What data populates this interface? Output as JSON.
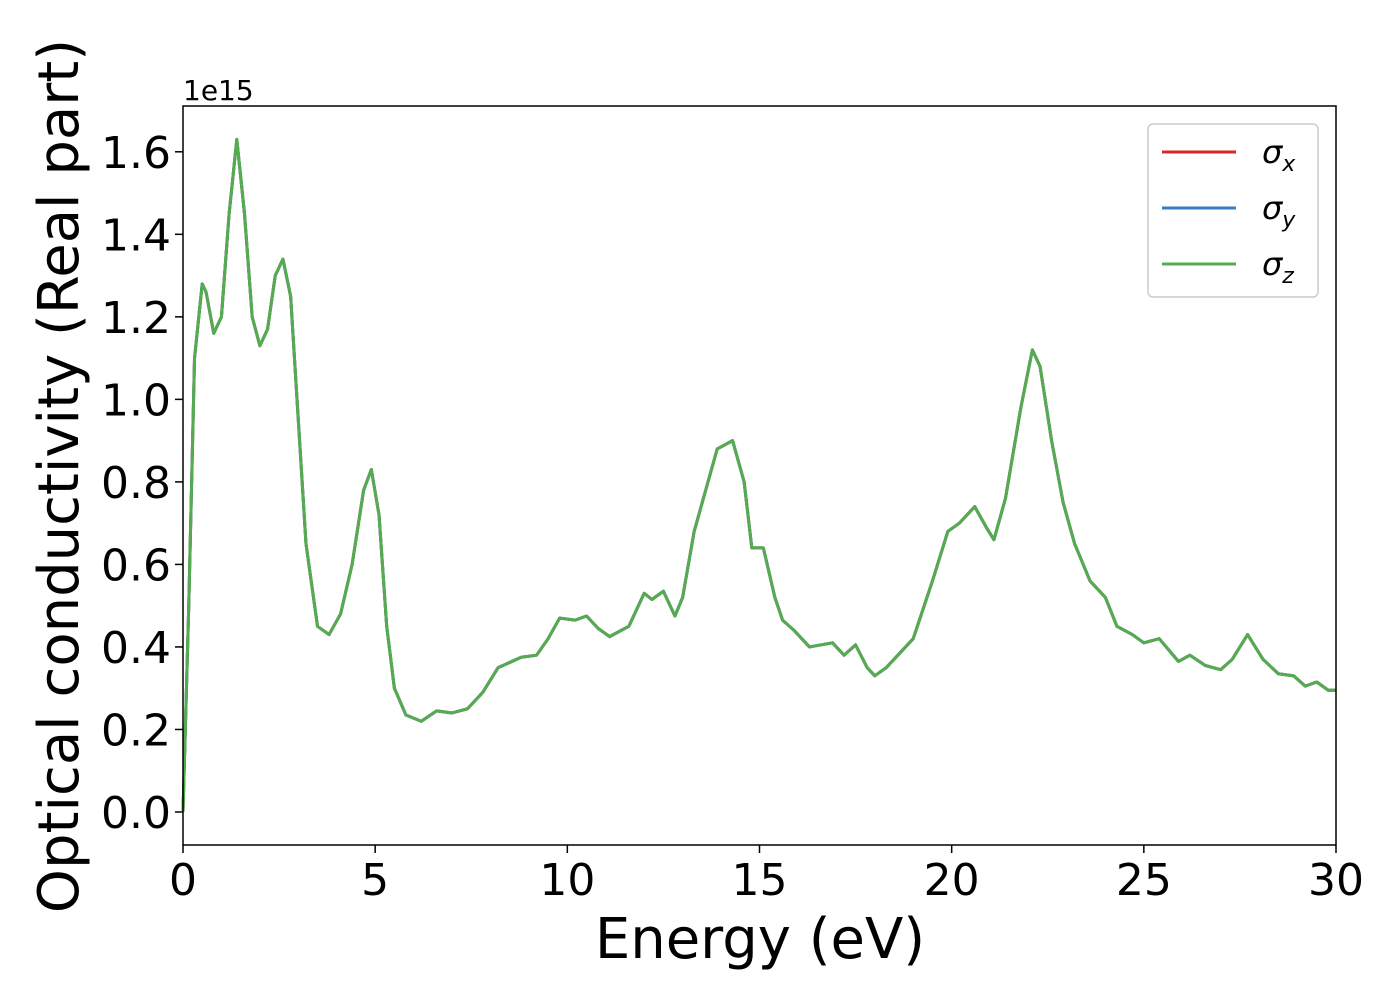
{
  "chart_data": {
    "type": "line",
    "xlabel": "Energy (eV)",
    "ylabel": "Optical conductivity (Real part)",
    "y_offset_label": "1e15",
    "x": [
      0,
      0.15,
      0.3,
      0.5,
      0.6,
      0.8,
      1.0,
      1.2,
      1.4,
      1.6,
      1.8,
      2.0,
      2.2,
      2.4,
      2.6,
      2.8,
      3.0,
      3.2,
      3.5,
      3.8,
      4.1,
      4.4,
      4.7,
      4.9,
      5.1,
      5.3,
      5.5,
      5.8,
      6.2,
      6.6,
      7.0,
      7.4,
      7.8,
      8.2,
      8.8,
      9.2,
      9.5,
      9.8,
      10.2,
      10.5,
      10.8,
      11.1,
      11.6,
      12.0,
      12.2,
      12.5,
      12.8,
      13.0,
      13.3,
      13.6,
      13.9,
      14.3,
      14.6,
      14.8,
      15.1,
      15.4,
      15.6,
      15.9,
      16.3,
      16.9,
      17.2,
      17.5,
      17.8,
      18.0,
      18.3,
      18.6,
      19.0,
      19.5,
      19.9,
      20.2,
      20.6,
      20.9,
      21.1,
      21.4,
      21.8,
      22.1,
      22.3,
      22.6,
      22.9,
      23.2,
      23.6,
      24.0,
      24.3,
      24.7,
      25.0,
      25.4,
      25.9,
      26.2,
      26.6,
      27.0,
      27.3,
      27.7,
      28.1,
      28.5,
      28.9,
      29.2,
      29.5,
      29.8,
      30.0
    ],
    "series": [
      {
        "name": "σx",
        "color": "#d62728",
        "values": [
          0,
          0.5,
          1.1,
          1.28,
          1.26,
          1.16,
          1.2,
          1.45,
          1.63,
          1.45,
          1.2,
          1.13,
          1.17,
          1.3,
          1.34,
          1.25,
          0.95,
          0.65,
          0.45,
          0.43,
          0.48,
          0.6,
          0.78,
          0.83,
          0.72,
          0.45,
          0.3,
          0.235,
          0.22,
          0.245,
          0.24,
          0.25,
          0.29,
          0.35,
          0.375,
          0.38,
          0.42,
          0.47,
          0.465,
          0.475,
          0.445,
          0.425,
          0.45,
          0.53,
          0.515,
          0.535,
          0.475,
          0.52,
          0.68,
          0.78,
          0.88,
          0.9,
          0.8,
          0.64,
          0.64,
          0.52,
          0.465,
          0.44,
          0.4,
          0.41,
          0.38,
          0.405,
          0.35,
          0.33,
          0.35,
          0.38,
          0.42,
          0.56,
          0.68,
          0.7,
          0.74,
          0.69,
          0.66,
          0.76,
          0.98,
          1.12,
          1.08,
          0.9,
          0.75,
          0.65,
          0.56,
          0.52,
          0.45,
          0.43,
          0.41,
          0.42,
          0.365,
          0.38,
          0.355,
          0.345,
          0.37,
          0.43,
          0.37,
          0.335,
          0.33,
          0.305,
          0.315,
          0.295,
          0.295
        ]
      },
      {
        "name": "σy",
        "color": "#3a7dbd",
        "values": [
          0,
          0.5,
          1.1,
          1.28,
          1.26,
          1.16,
          1.2,
          1.45,
          1.63,
          1.45,
          1.2,
          1.13,
          1.17,
          1.3,
          1.34,
          1.25,
          0.95,
          0.65,
          0.45,
          0.43,
          0.48,
          0.6,
          0.78,
          0.83,
          0.72,
          0.45,
          0.3,
          0.235,
          0.22,
          0.245,
          0.24,
          0.25,
          0.29,
          0.35,
          0.375,
          0.38,
          0.42,
          0.47,
          0.465,
          0.475,
          0.445,
          0.425,
          0.45,
          0.53,
          0.515,
          0.535,
          0.475,
          0.52,
          0.68,
          0.78,
          0.88,
          0.9,
          0.8,
          0.64,
          0.64,
          0.52,
          0.465,
          0.44,
          0.4,
          0.41,
          0.38,
          0.405,
          0.35,
          0.33,
          0.35,
          0.38,
          0.42,
          0.56,
          0.68,
          0.7,
          0.74,
          0.69,
          0.66,
          0.76,
          0.98,
          1.12,
          1.08,
          0.9,
          0.75,
          0.65,
          0.56,
          0.52,
          0.45,
          0.43,
          0.41,
          0.42,
          0.365,
          0.38,
          0.355,
          0.345,
          0.37,
          0.43,
          0.37,
          0.335,
          0.33,
          0.305,
          0.315,
          0.295,
          0.295
        ]
      },
      {
        "name": "σz",
        "color": "#55ab50",
        "values": [
          0,
          0.5,
          1.1,
          1.28,
          1.26,
          1.16,
          1.2,
          1.45,
          1.63,
          1.45,
          1.2,
          1.13,
          1.17,
          1.3,
          1.34,
          1.25,
          0.95,
          0.65,
          0.45,
          0.43,
          0.48,
          0.6,
          0.78,
          0.83,
          0.72,
          0.45,
          0.3,
          0.235,
          0.22,
          0.245,
          0.24,
          0.25,
          0.29,
          0.35,
          0.375,
          0.38,
          0.42,
          0.47,
          0.465,
          0.475,
          0.445,
          0.425,
          0.45,
          0.53,
          0.515,
          0.535,
          0.475,
          0.52,
          0.68,
          0.78,
          0.88,
          0.9,
          0.8,
          0.64,
          0.64,
          0.52,
          0.465,
          0.44,
          0.4,
          0.41,
          0.38,
          0.405,
          0.35,
          0.33,
          0.35,
          0.38,
          0.42,
          0.56,
          0.68,
          0.7,
          0.74,
          0.69,
          0.66,
          0.76,
          0.98,
          1.12,
          1.08,
          0.9,
          0.75,
          0.65,
          0.56,
          0.52,
          0.45,
          0.43,
          0.41,
          0.42,
          0.365,
          0.38,
          0.355,
          0.345,
          0.37,
          0.43,
          0.37,
          0.335,
          0.33,
          0.305,
          0.315,
          0.295,
          0.295
        ]
      }
    ],
    "xlim": [
      0,
      30
    ],
    "xticks": [
      0,
      5,
      10,
      15,
      20,
      25,
      30
    ],
    "ylim": [
      -0.08,
      1.711
    ],
    "yticks": [
      {
        "value": 0,
        "label": "0.0"
      },
      0.2,
      0.4,
      0.6,
      0.8,
      {
        "value": 1,
        "label": "1.0"
      },
      1.2,
      1.4,
      1.6
    ],
    "legend": "upper right",
    "grid": false
  }
}
